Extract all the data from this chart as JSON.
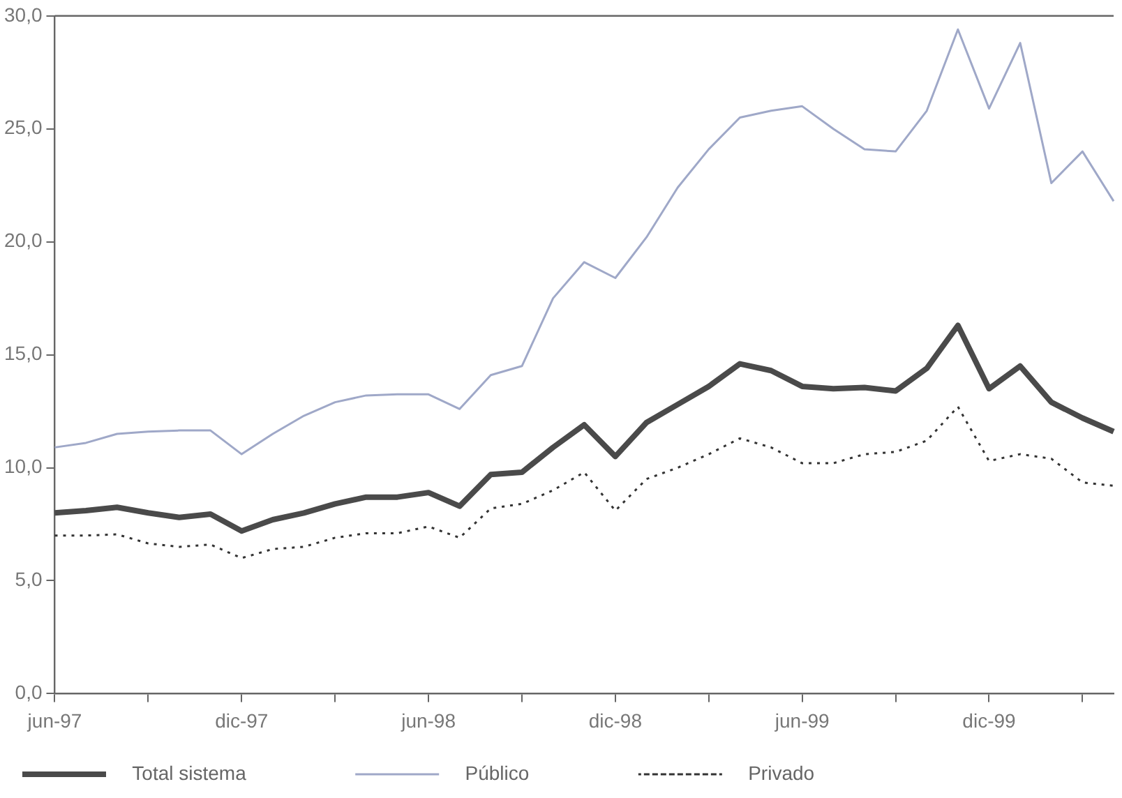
{
  "chart_data": {
    "type": "line",
    "categories": [
      "jun-97",
      null,
      null,
      null,
      null,
      null,
      "dic-97",
      null,
      null,
      null,
      null,
      null,
      "jun-98",
      null,
      null,
      null,
      null,
      null,
      "dic-98",
      null,
      null,
      null,
      null,
      null,
      "jun-99",
      null,
      null,
      null,
      null,
      null,
      "dic-99",
      null,
      null,
      null,
      null
    ],
    "series": [
      {
        "name": "Total sistema",
        "color": "#4a4a4a",
        "line_style": "solid",
        "values": [
          8.0,
          8.1,
          8.25,
          8.0,
          7.8,
          7.95,
          7.2,
          7.7,
          8.0,
          8.4,
          8.7,
          8.7,
          8.9,
          8.3,
          9.7,
          9.8,
          10.9,
          11.9,
          10.5,
          12.0,
          12.8,
          13.6,
          14.6,
          14.3,
          13.6,
          13.5,
          13.55,
          13.4,
          14.4,
          16.3,
          13.5,
          14.5,
          12.9,
          12.2,
          11.6
        ]
      },
      {
        "name": "Público",
        "color": "#9fa8c8",
        "line_style": "solid",
        "values": [
          10.9,
          11.1,
          11.5,
          11.6,
          11.65,
          11.65,
          10.6,
          11.5,
          12.3,
          12.9,
          13.2,
          13.25,
          13.25,
          12.6,
          14.1,
          14.5,
          17.5,
          19.1,
          18.4,
          20.2,
          22.4,
          24.1,
          25.5,
          25.8,
          26.0,
          25.0,
          24.1,
          24.0,
          25.8,
          29.4,
          25.9,
          28.8,
          22.6,
          24.0,
          21.8
        ]
      },
      {
        "name": "Privado",
        "color": "#333333",
        "line_style": "dotted",
        "values": [
          7.0,
          7.0,
          7.05,
          6.65,
          6.5,
          6.6,
          6.0,
          6.4,
          6.5,
          6.9,
          7.1,
          7.1,
          7.4,
          6.9,
          8.2,
          8.4,
          9.0,
          9.8,
          8.1,
          9.5,
          10.0,
          10.6,
          11.3,
          10.9,
          10.2,
          10.2,
          10.6,
          10.7,
          11.2,
          12.7,
          10.3,
          10.6,
          10.4,
          9.35,
          9.2
        ]
      }
    ],
    "ylim": [
      0,
      30
    ],
    "yticks": [
      {
        "value": 0,
        "label": "0,0"
      },
      {
        "value": 5,
        "label": "5,0"
      },
      {
        "value": 10,
        "label": "10,0"
      },
      {
        "value": 15,
        "label": "15,0"
      },
      {
        "value": 20,
        "label": "20,0"
      },
      {
        "value": 25,
        "label": "25,0"
      },
      {
        "value": 30,
        "label": "30,0"
      }
    ],
    "grid": false,
    "legend": "bottom",
    "marker": "none"
  }
}
